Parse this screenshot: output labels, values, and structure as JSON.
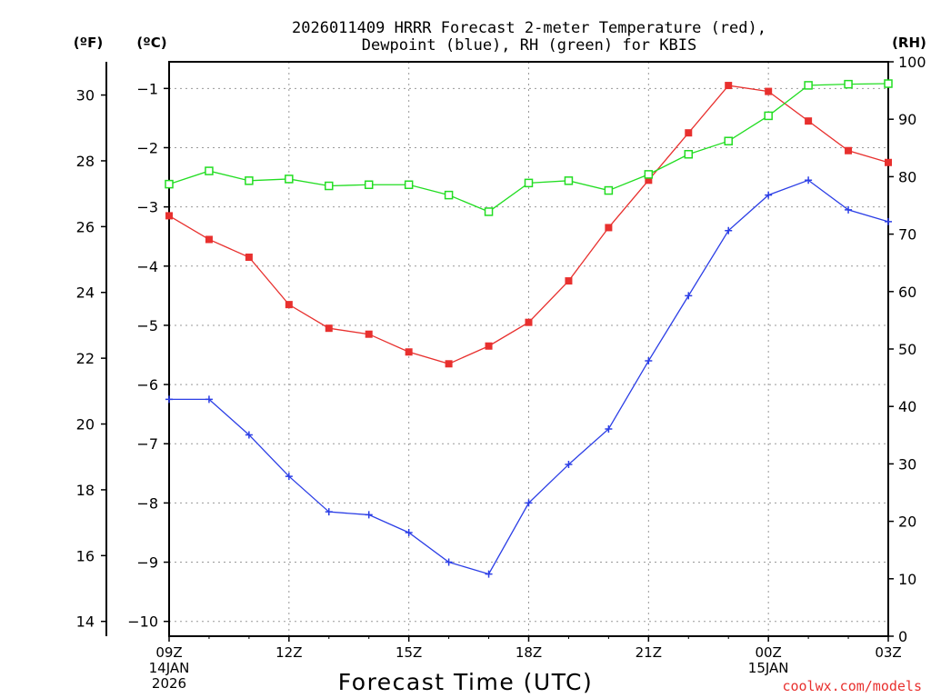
{
  "chart_data": {
    "type": "line",
    "title_line1": "2026011409 HRRR Forecast 2-meter Temperature (red),",
    "title_line2": "Dewpoint (blue), RH (green) for KBIS",
    "xlabel": "Forecast Time (UTC)",
    "watermark": "coolwx.com/models",
    "unit_f": "(ºF)",
    "unit_c": "(ºC)",
    "unit_rh": "(RH)",
    "x_ticks": [
      {
        "hour": 0,
        "label": "09Z",
        "sub1": "14JAN",
        "sub2": "2026"
      },
      {
        "hour": 3,
        "label": "12Z",
        "sub1": "",
        "sub2": ""
      },
      {
        "hour": 6,
        "label": "15Z",
        "sub1": "",
        "sub2": ""
      },
      {
        "hour": 9,
        "label": "18Z",
        "sub1": "",
        "sub2": ""
      },
      {
        "hour": 12,
        "label": "21Z",
        "sub1": "",
        "sub2": ""
      },
      {
        "hour": 15,
        "label": "00Z",
        "sub1": "15JAN",
        "sub2": ""
      },
      {
        "hour": 18,
        "label": "03Z",
        "sub1": "",
        "sub2": ""
      }
    ],
    "xlim": [
      0,
      18
    ],
    "c_ticks": [
      "-1",
      "-2",
      "-3",
      "-4",
      "-5",
      "-6",
      "-7",
      "-8",
      "-9",
      "-10"
    ],
    "clim": [
      -10.25,
      -0.55
    ],
    "f_ticks": [
      "30",
      "28",
      "26",
      "24",
      "22",
      "20",
      "18",
      "16",
      "14"
    ],
    "rh_ticks": [
      "100",
      "90",
      "80",
      "70",
      "60",
      "50",
      "40",
      "30",
      "20",
      "10",
      "0"
    ],
    "rhlim": [
      0,
      100
    ],
    "series": [
      {
        "name": "Temperature",
        "color": "#e8302e",
        "marker": "filled-square",
        "axis": "c",
        "values": [
          -3.15,
          -3.55,
          -3.85,
          -4.65,
          -5.05,
          -5.15,
          -5.45,
          -5.65,
          -5.35,
          -4.95,
          -4.25,
          -3.35,
          -2.55,
          -1.75,
          -0.95,
          -1.05,
          -1.55,
          -2.05,
          -2.25
        ]
      },
      {
        "name": "Dewpoint",
        "color": "#2b3ee6",
        "marker": "plus",
        "axis": "c",
        "values": [
          -6.25,
          -6.25,
          -6.85,
          -7.55,
          -8.15,
          -8.2,
          -8.5,
          -9.0,
          -9.2,
          -8.0,
          -7.35,
          -6.75,
          -5.6,
          -4.5,
          -3.4,
          -2.8,
          -2.55,
          -3.05,
          -3.25
        ]
      },
      {
        "name": "RH",
        "color": "#22dd22",
        "marker": "open-square",
        "axis": "rh",
        "values": [
          78.7,
          81.0,
          79.3,
          79.6,
          78.4,
          78.6,
          78.6,
          76.8,
          73.9,
          78.9,
          79.3,
          77.6,
          80.4,
          83.9,
          86.2,
          90.6,
          95.9,
          96.1,
          96.2
        ]
      }
    ]
  }
}
